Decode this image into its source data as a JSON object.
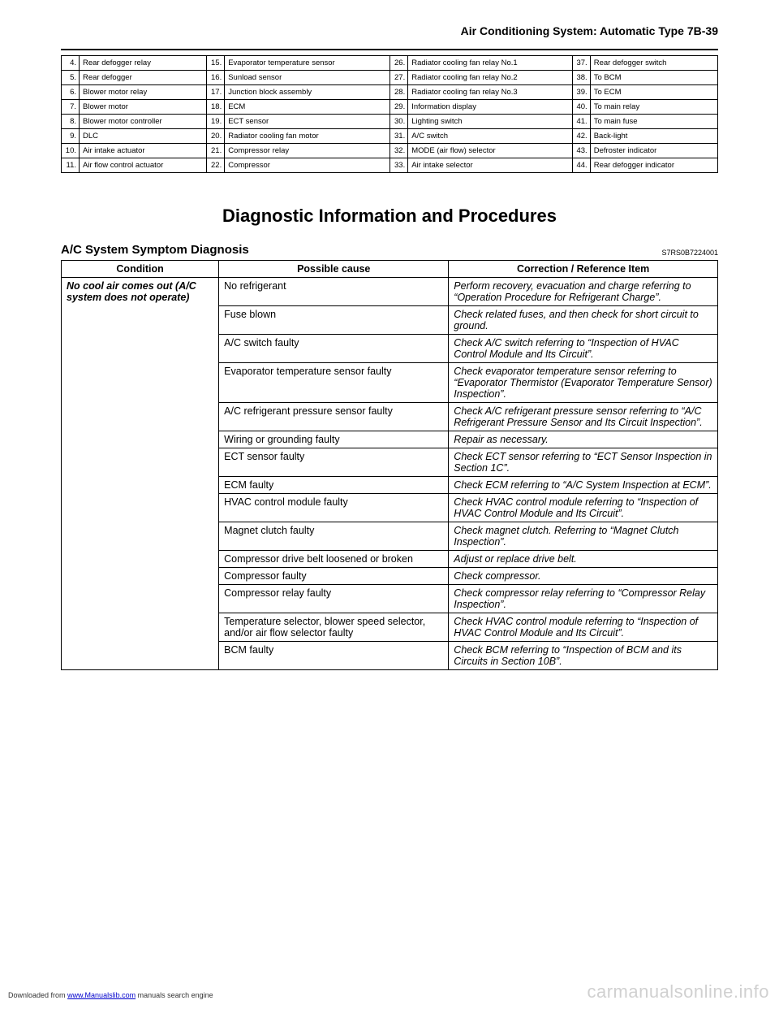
{
  "header": {
    "title": "Air Conditioning System: Automatic Type   7B-39"
  },
  "parts": {
    "rows": [
      [
        {
          "n": "4.",
          "t": "Rear defogger relay"
        },
        {
          "n": "15.",
          "t": "Evaporator temperature sensor"
        },
        {
          "n": "26.",
          "t": "Radiator cooling fan relay No.1"
        },
        {
          "n": "37.",
          "t": "Rear defogger switch"
        }
      ],
      [
        {
          "n": "5.",
          "t": "Rear defogger"
        },
        {
          "n": "16.",
          "t": "Sunload sensor"
        },
        {
          "n": "27.",
          "t": "Radiator cooling fan relay No.2"
        },
        {
          "n": "38.",
          "t": "To BCM"
        }
      ],
      [
        {
          "n": "6.",
          "t": "Blower motor relay"
        },
        {
          "n": "17.",
          "t": "Junction block assembly"
        },
        {
          "n": "28.",
          "t": "Radiator cooling fan relay No.3"
        },
        {
          "n": "39.",
          "t": "To ECM"
        }
      ],
      [
        {
          "n": "7.",
          "t": "Blower motor"
        },
        {
          "n": "18.",
          "t": "ECM"
        },
        {
          "n": "29.",
          "t": "Information display"
        },
        {
          "n": "40.",
          "t": "To main relay"
        }
      ],
      [
        {
          "n": "8.",
          "t": "Blower motor controller"
        },
        {
          "n": "19.",
          "t": "ECT sensor"
        },
        {
          "n": "30.",
          "t": "Lighting switch"
        },
        {
          "n": "41.",
          "t": "To main fuse"
        }
      ],
      [
        {
          "n": "9.",
          "t": "DLC"
        },
        {
          "n": "20.",
          "t": "Radiator cooling fan motor"
        },
        {
          "n": "31.",
          "t": "A/C switch"
        },
        {
          "n": "42.",
          "t": "Back-light"
        }
      ],
      [
        {
          "n": "10.",
          "t": "Air intake actuator"
        },
        {
          "n": "21.",
          "t": "Compressor relay"
        },
        {
          "n": "32.",
          "t": "MODE (air flow) selector"
        },
        {
          "n": "43.",
          "t": "Defroster indicator"
        }
      ],
      [
        {
          "n": "11.",
          "t": "Air flow control actuator"
        },
        {
          "n": "22.",
          "t": "Compressor"
        },
        {
          "n": "33.",
          "t": "Air intake selector"
        },
        {
          "n": "44.",
          "t": "Rear defogger indicator"
        }
      ]
    ]
  },
  "section": {
    "title": "Diagnostic Information and Procedures",
    "subtitle": "A/C System Symptom Diagnosis",
    "code": "S7RS0B7224001"
  },
  "diag": {
    "headers": [
      "Condition",
      "Possible cause",
      "Correction / Reference Item"
    ],
    "condition": "No cool air comes out (A/C system does not operate)",
    "rows": [
      {
        "cause": "No refrigerant",
        "corr": "Perform recovery, evacuation and charge referring to “Operation Procedure for Refrigerant Charge”."
      },
      {
        "cause": "Fuse blown",
        "corr": "Check related fuses, and then check for short circuit to ground."
      },
      {
        "cause": "A/C switch faulty",
        "corr": "Check A/C switch referring to “Inspection of HVAC Control Module and Its Circuit”."
      },
      {
        "cause": "Evaporator temperature sensor faulty",
        "corr": "Check evaporator temperature sensor referring to “Evaporator Thermistor (Evaporator Temperature Sensor) Inspection”."
      },
      {
        "cause": "A/C refrigerant pressure sensor faulty",
        "corr": "Check A/C refrigerant pressure sensor referring to “A/C Refrigerant Pressure Sensor and Its Circuit Inspection”."
      },
      {
        "cause": "Wiring or grounding faulty",
        "corr": "Repair as necessary."
      },
      {
        "cause": "ECT sensor faulty",
        "corr": "Check ECT sensor referring to “ECT Sensor Inspection in Section 1C”."
      },
      {
        "cause": "ECM faulty",
        "corr": "Check ECM referring to “A/C System Inspection at ECM”."
      },
      {
        "cause": "HVAC control module faulty",
        "corr": "Check HVAC control module referring to “Inspection of HVAC Control Module and Its Circuit”."
      },
      {
        "cause": "Magnet clutch faulty",
        "corr": "Check magnet clutch. Referring to “Magnet Clutch Inspection”."
      },
      {
        "cause": "Compressor drive belt loosened or broken",
        "corr": "Adjust or replace drive belt."
      },
      {
        "cause": "Compressor faulty",
        "corr": "Check compressor."
      },
      {
        "cause": "Compressor relay faulty",
        "corr": "Check compressor relay referring to “Compressor Relay Inspection”."
      },
      {
        "cause": "Temperature selector, blower speed selector, and/or air flow selector faulty",
        "corr": "Check HVAC control module referring to “Inspection of HVAC Control Module and Its Circuit”."
      },
      {
        "cause": "BCM faulty",
        "corr": "Check BCM referring to “Inspection of BCM and its Circuits in Section 10B”."
      }
    ]
  },
  "footer": {
    "prefix": "Downloaded from ",
    "link": "www.Manualslib.com",
    "suffix": " manuals search engine"
  },
  "watermark": "carmanualsonline.info"
}
